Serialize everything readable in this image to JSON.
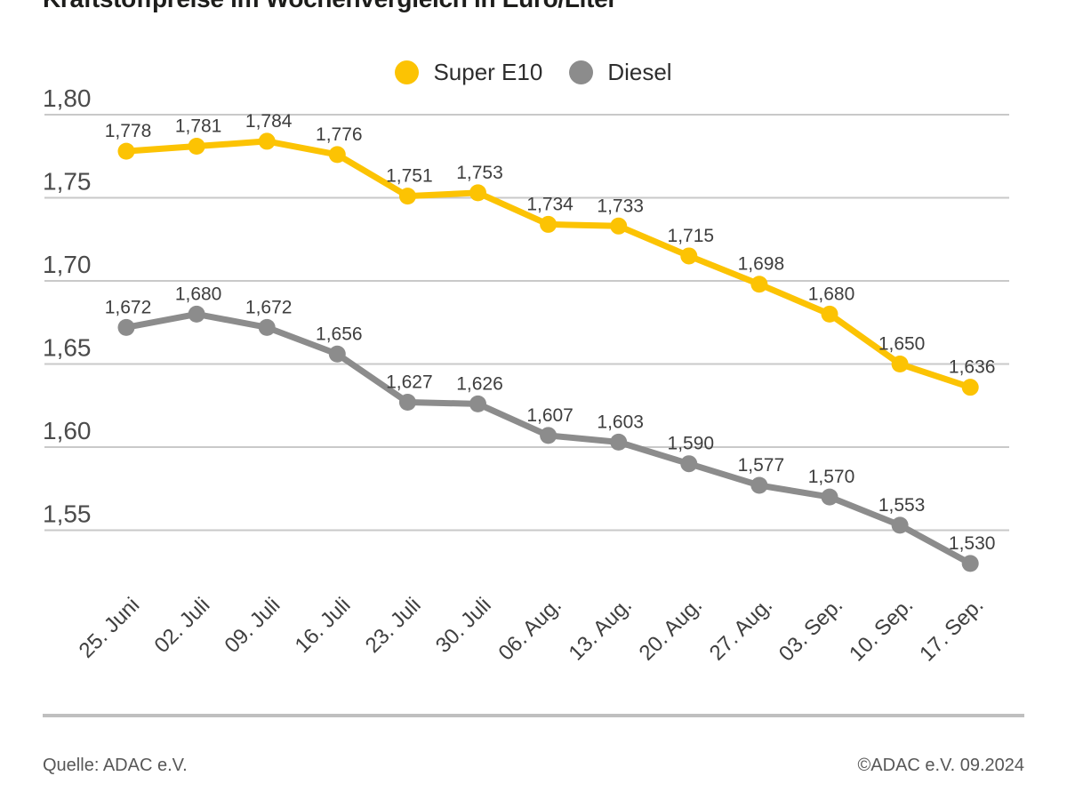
{
  "title": "Kraftstoffpreise im Wochenvergleich in Euro/Liter",
  "legend": [
    {
      "name": "Super E10",
      "color": "#fcc303"
    },
    {
      "name": "Diesel",
      "color": "#8c8c8c"
    }
  ],
  "footer": {
    "source": "Quelle: ADAC e.V.",
    "copyright": "©ADAC e.V. 09.2024"
  },
  "colors": {
    "super_e10": "#fcc303",
    "diesel": "#8c8c8c",
    "gridline": "#c9c9c9",
    "axis_text": "#4b4b4b",
    "point_label_text": "#3e3e3e",
    "separator": "#bfbfbf"
  },
  "chart_data": {
    "type": "line",
    "title": "Kraftstoffpreise im Wochenvergleich in Euro/Liter",
    "xlabel": "",
    "ylabel": "Euro/Liter",
    "grid": true,
    "legend_position": "top-center",
    "ylim": [
      1.53,
      1.8
    ],
    "categories": [
      "25. Juni",
      "02. Juli",
      "09. Juli",
      "16. Juli",
      "23. Juli",
      "30. Juli",
      "06. Aug.",
      "13. Aug.",
      "20. Aug.",
      "27. Aug.",
      "03. Sep.",
      "10. Sep.",
      "17. Sep."
    ],
    "y_ticks": [
      "1,80",
      "1,75",
      "1,70",
      "1,65",
      "1,60",
      "1,55"
    ],
    "y_tick_values": [
      1.8,
      1.75,
      1.7,
      1.65,
      1.6,
      1.55
    ],
    "series": [
      {
        "name": "Super E10",
        "color": "#fcc303",
        "values": [
          1.778,
          1.781,
          1.784,
          1.776,
          1.751,
          1.753,
          1.734,
          1.733,
          1.715,
          1.698,
          1.68,
          1.65,
          1.636
        ],
        "labels": [
          "1,778",
          "1,781",
          "1,784",
          "1,776",
          "1,751",
          "1,753",
          "1,734",
          "1,733",
          "1,715",
          "1,698",
          "1,680",
          "1,650",
          "1,636"
        ]
      },
      {
        "name": "Diesel",
        "color": "#8c8c8c",
        "values": [
          1.672,
          1.68,
          1.672,
          1.656,
          1.627,
          1.626,
          1.607,
          1.603,
          1.59,
          1.577,
          1.57,
          1.553,
          1.53
        ],
        "labels": [
          "1,672",
          "1,680",
          "1,672",
          "1,656",
          "1,627",
          "1,626",
          "1,607",
          "1,603",
          "1,590",
          "1,577",
          "1,570",
          "1,553",
          "1,530"
        ]
      }
    ]
  }
}
